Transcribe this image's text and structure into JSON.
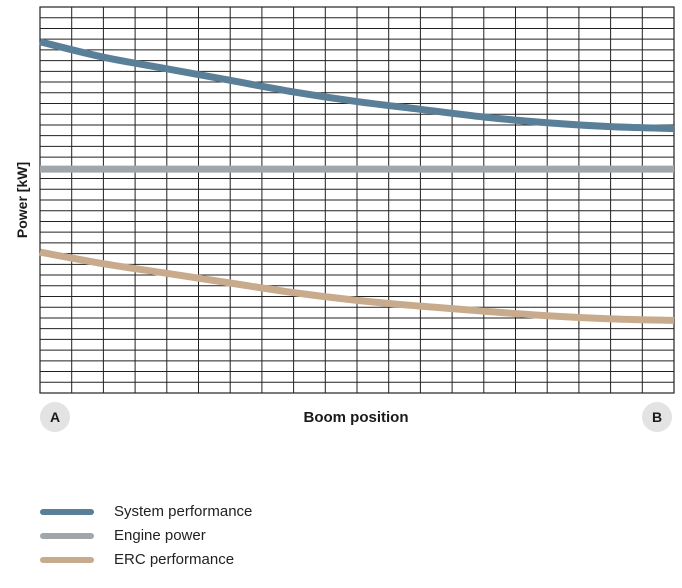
{
  "chart_data": {
    "type": "line",
    "title": "",
    "xlabel": "Boom position",
    "ylabel": "Power [kW]",
    "x_start_label": "A",
    "x_end_label": "B",
    "x": [
      0,
      0.1,
      0.2,
      0.3,
      0.4,
      0.5,
      0.6,
      0.7,
      0.8,
      0.9,
      1.0
    ],
    "xlim": [
      0,
      1
    ],
    "ylim": [
      0,
      1
    ],
    "grid": true,
    "legend_position": "bottom",
    "series": [
      {
        "name": "System performance",
        "color": "#5a7f98",
        "values": [
          0.91,
          0.87,
          0.84,
          0.81,
          0.78,
          0.755,
          0.735,
          0.715,
          0.7,
          0.69,
          0.685
        ]
      },
      {
        "name": "Engine power",
        "color": "#a1a6ab",
        "values": [
          0.58,
          0.58,
          0.58,
          0.58,
          0.58,
          0.58,
          0.58,
          0.58,
          0.58,
          0.58,
          0.58
        ]
      },
      {
        "name": "ERC performance",
        "color": "#c8ab8c",
        "values": [
          0.365,
          0.335,
          0.31,
          0.285,
          0.26,
          0.24,
          0.225,
          0.212,
          0.2,
          0.192,
          0.188
        ]
      }
    ]
  }
}
